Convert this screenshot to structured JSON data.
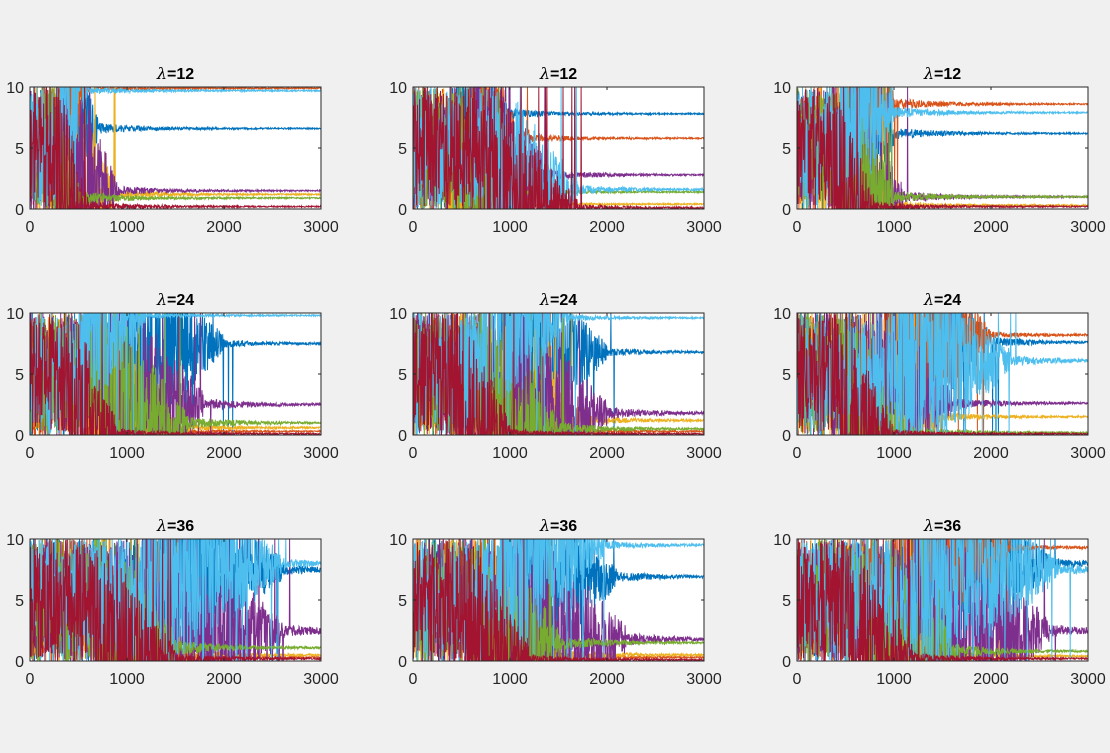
{
  "figure": {
    "background": "#f0f0f0",
    "grid": false
  },
  "colors": [
    "#0072BD",
    "#D95319",
    "#EDB120",
    "#7E2F8E",
    "#77AC30",
    "#4DBEEE",
    "#A2142F"
  ],
  "chart_data": [
    {
      "type": "line",
      "title": "λ=12",
      "lambda_symbol": "λ",
      "lambda_value": "=12",
      "xlim": [
        0,
        3000
      ],
      "ylim": [
        0,
        10
      ],
      "xticks": [
        "0",
        "1000",
        "2000",
        "3000"
      ],
      "yticks": [
        "0",
        "5",
        "10"
      ],
      "series": [
        {
          "color": "#0072BD",
          "final": 6.6,
          "conv_at": 700,
          "noise": 2.2
        },
        {
          "color": "#D95319",
          "final": 9.9,
          "conv_at": 600,
          "noise": 1.6
        },
        {
          "color": "#EDB120",
          "final": 1.2,
          "conv_at": 900,
          "noise": 2.2
        },
        {
          "color": "#7E2F8E",
          "final": 1.5,
          "conv_at": 900,
          "noise": 2.0
        },
        {
          "color": "#77AC30",
          "final": 0.9,
          "conv_at": 500,
          "noise": 3.0
        },
        {
          "color": "#4DBEEE",
          "final": 9.7,
          "conv_at": 600,
          "noise": 1.5
        },
        {
          "color": "#A2142F",
          "final": 0.2,
          "conv_at": 600,
          "noise": 2.2
        }
      ]
    },
    {
      "type": "line",
      "title": "λ=12",
      "lambda_symbol": "λ",
      "lambda_value": "=12",
      "xlim": [
        0,
        3000
      ],
      "ylim": [
        0,
        10
      ],
      "xticks": [
        "0",
        "1000",
        "2000",
        "3000"
      ],
      "yticks": [
        "0",
        "5",
        "10"
      ],
      "series": [
        {
          "color": "#0072BD",
          "final": 7.8,
          "conv_at": 1000,
          "noise": 2.0
        },
        {
          "color": "#D95319",
          "final": 5.8,
          "conv_at": 1200,
          "noise": 1.6
        },
        {
          "color": "#EDB120",
          "final": 0.4,
          "conv_at": 800,
          "noise": 2.0
        },
        {
          "color": "#7E2F8E",
          "final": 2.8,
          "conv_at": 1400,
          "noise": 2.2
        },
        {
          "color": "#77AC30",
          "final": 1.4,
          "conv_at": 900,
          "noise": 2.5
        },
        {
          "color": "#4DBEEE",
          "final": 1.6,
          "conv_at": 1700,
          "noise": 2.0
        },
        {
          "color": "#A2142F",
          "final": 0.1,
          "conv_at": 1700,
          "noise": 1.6
        }
      ]
    },
    {
      "type": "line",
      "title": "λ=12",
      "lambda_symbol": "λ",
      "lambda_value": "=12",
      "xlim": [
        0,
        3000
      ],
      "ylim": [
        0,
        10
      ],
      "xticks": [
        "0",
        "1000",
        "2000",
        "3000"
      ],
      "yticks": [
        "0",
        "5",
        "10"
      ],
      "series": [
        {
          "color": "#0072BD",
          "final": 6.2,
          "conv_at": 1000,
          "noise": 2.5
        },
        {
          "color": "#D95319",
          "final": 8.6,
          "conv_at": 1000,
          "noise": 2.5
        },
        {
          "color": "#EDB120",
          "final": 0.3,
          "conv_at": 1000,
          "noise": 2.0
        },
        {
          "color": "#7E2F8E",
          "final": 1.0,
          "conv_at": 1100,
          "noise": 2.4
        },
        {
          "color": "#77AC30",
          "final": 1.0,
          "conv_at": 1000,
          "noise": 2.5
        },
        {
          "color": "#4DBEEE",
          "final": 7.9,
          "conv_at": 1000,
          "noise": 2.4
        },
        {
          "color": "#A2142F",
          "final": 0.2,
          "conv_at": 800,
          "noise": 2.0
        }
      ]
    },
    {
      "type": "line",
      "title": "λ=24",
      "lambda_symbol": "λ",
      "lambda_value": "=24",
      "xlim": [
        0,
        3000
      ],
      "ylim": [
        0,
        10
      ],
      "xticks": [
        "0",
        "1000",
        "2000",
        "3000"
      ],
      "yticks": [
        "0",
        "5",
        "10"
      ],
      "series": [
        {
          "color": "#0072BD",
          "final": 7.5,
          "conv_at": 2000,
          "noise": 1.6
        },
        {
          "color": "#D95319",
          "final": 0.3,
          "conv_at": 1200,
          "noise": 2.0
        },
        {
          "color": "#EDB120",
          "final": 0.6,
          "conv_at": 1500,
          "noise": 2.0
        },
        {
          "color": "#7E2F8E",
          "final": 2.5,
          "conv_at": 1800,
          "noise": 2.5
        },
        {
          "color": "#77AC30",
          "final": 1.0,
          "conv_at": 1600,
          "noise": 3.0
        },
        {
          "color": "#4DBEEE",
          "final": 9.8,
          "conv_at": 1200,
          "noise": 1.2
        },
        {
          "color": "#A2142F",
          "final": 0.1,
          "conv_at": 900,
          "noise": 2.5
        }
      ]
    },
    {
      "type": "line",
      "title": "λ=24",
      "lambda_symbol": "λ",
      "lambda_value": "=24",
      "xlim": [
        0,
        3000
      ],
      "ylim": [
        0,
        10
      ],
      "xticks": [
        "0",
        "1000",
        "2000",
        "3000"
      ],
      "yticks": [
        "0",
        "5",
        "10"
      ],
      "series": [
        {
          "color": "#0072BD",
          "final": 6.8,
          "conv_at": 2000,
          "noise": 1.6
        },
        {
          "color": "#D95319",
          "final": 0.3,
          "conv_at": 1500,
          "noise": 2.0
        },
        {
          "color": "#EDB120",
          "final": 1.2,
          "conv_at": 1800,
          "noise": 2.0
        },
        {
          "color": "#7E2F8E",
          "final": 1.8,
          "conv_at": 2000,
          "noise": 2.5
        },
        {
          "color": "#77AC30",
          "final": 0.5,
          "conv_at": 1500,
          "noise": 3.0
        },
        {
          "color": "#4DBEEE",
          "final": 9.6,
          "conv_at": 1600,
          "noise": 1.4
        },
        {
          "color": "#A2142F",
          "final": 0.1,
          "conv_at": 1000,
          "noise": 2.2
        }
      ]
    },
    {
      "type": "line",
      "title": "λ=24",
      "lambda_symbol": "λ",
      "lambda_value": "=24",
      "xlim": [
        0,
        3000
      ],
      "ylim": [
        0,
        10
      ],
      "xticks": [
        "0",
        "1000",
        "2000",
        "3000"
      ],
      "yticks": [
        "0",
        "5",
        "10"
      ],
      "series": [
        {
          "color": "#0072BD",
          "final": 7.6,
          "conv_at": 2000,
          "noise": 2.2
        },
        {
          "color": "#D95319",
          "final": 8.2,
          "conv_at": 2000,
          "noise": 1.4
        },
        {
          "color": "#EDB120",
          "final": 1.5,
          "conv_at": 1500,
          "noise": 2.0
        },
        {
          "color": "#7E2F8E",
          "final": 2.6,
          "conv_at": 1600,
          "noise": 2.5
        },
        {
          "color": "#77AC30",
          "final": 0.2,
          "conv_at": 1100,
          "noise": 3.0
        },
        {
          "color": "#4DBEEE",
          "final": 6.1,
          "conv_at": 2200,
          "noise": 2.2
        },
        {
          "color": "#A2142F",
          "final": 0.1,
          "conv_at": 1000,
          "noise": 2.0
        }
      ]
    },
    {
      "type": "line",
      "title": "λ=36",
      "lambda_symbol": "λ",
      "lambda_value": "=36",
      "xlim": [
        0,
        3000
      ],
      "ylim": [
        0,
        10
      ],
      "xticks": [
        "0",
        "1000",
        "2000",
        "3000"
      ],
      "yticks": [
        "0",
        "5",
        "10"
      ],
      "series": [
        {
          "color": "#0072BD",
          "final": 7.5,
          "conv_at": 2600,
          "noise": 2.4
        },
        {
          "color": "#D95319",
          "final": 0.3,
          "conv_at": 1500,
          "noise": 2.5
        },
        {
          "color": "#EDB120",
          "final": 0.5,
          "conv_at": 1600,
          "noise": 2.5
        },
        {
          "color": "#7E2F8E",
          "final": 2.5,
          "conv_at": 2600,
          "noise": 2.8
        },
        {
          "color": "#77AC30",
          "final": 1.1,
          "conv_at": 1500,
          "noise": 3.5
        },
        {
          "color": "#4DBEEE",
          "final": 8.0,
          "conv_at": 2600,
          "noise": 2.2
        },
        {
          "color": "#A2142F",
          "final": 0.2,
          "conv_at": 1500,
          "noise": 2.5
        }
      ]
    },
    {
      "type": "line",
      "title": "λ=36",
      "lambda_symbol": "λ",
      "lambda_value": "=36",
      "xlim": [
        0,
        3000
      ],
      "ylim": [
        0,
        10
      ],
      "xticks": [
        "0",
        "1000",
        "2000",
        "3000"
      ],
      "yticks": [
        "0",
        "5",
        "10"
      ],
      "series": [
        {
          "color": "#0072BD",
          "final": 6.9,
          "conv_at": 2100,
          "noise": 2.2
        },
        {
          "color": "#D95319",
          "final": 0.3,
          "conv_at": 1500,
          "noise": 2.5
        },
        {
          "color": "#EDB120",
          "final": 0.5,
          "conv_at": 1500,
          "noise": 2.5
        },
        {
          "color": "#7E2F8E",
          "final": 1.8,
          "conv_at": 2200,
          "noise": 2.8
        },
        {
          "color": "#77AC30",
          "final": 1.5,
          "conv_at": 1500,
          "noise": 3.5
        },
        {
          "color": "#4DBEEE",
          "final": 9.5,
          "conv_at": 2000,
          "noise": 1.6
        },
        {
          "color": "#A2142F",
          "final": 0.1,
          "conv_at": 1200,
          "noise": 2.5
        }
      ]
    },
    {
      "type": "line",
      "title": "λ=36",
      "lambda_symbol": "λ",
      "lambda_value": "=36",
      "xlim": [
        0,
        3000
      ],
      "ylim": [
        0,
        10
      ],
      "xticks": [
        "0",
        "1000",
        "2000",
        "3000"
      ],
      "yticks": [
        "0",
        "5",
        "10"
      ],
      "series": [
        {
          "color": "#0072BD",
          "final": 8.0,
          "conv_at": 2600,
          "noise": 2.4
        },
        {
          "color": "#D95319",
          "final": 9.3,
          "conv_at": 2200,
          "noise": 1.6
        },
        {
          "color": "#EDB120",
          "final": 0.4,
          "conv_at": 1600,
          "noise": 2.5
        },
        {
          "color": "#7E2F8E",
          "final": 2.5,
          "conv_at": 2600,
          "noise": 2.8
        },
        {
          "color": "#77AC30",
          "final": 0.8,
          "conv_at": 1600,
          "noise": 3.5
        },
        {
          "color": "#4DBEEE",
          "final": 7.5,
          "conv_at": 2700,
          "noise": 2.4
        },
        {
          "color": "#A2142F",
          "final": 0.2,
          "conv_at": 1200,
          "noise": 2.5
        }
      ]
    }
  ]
}
